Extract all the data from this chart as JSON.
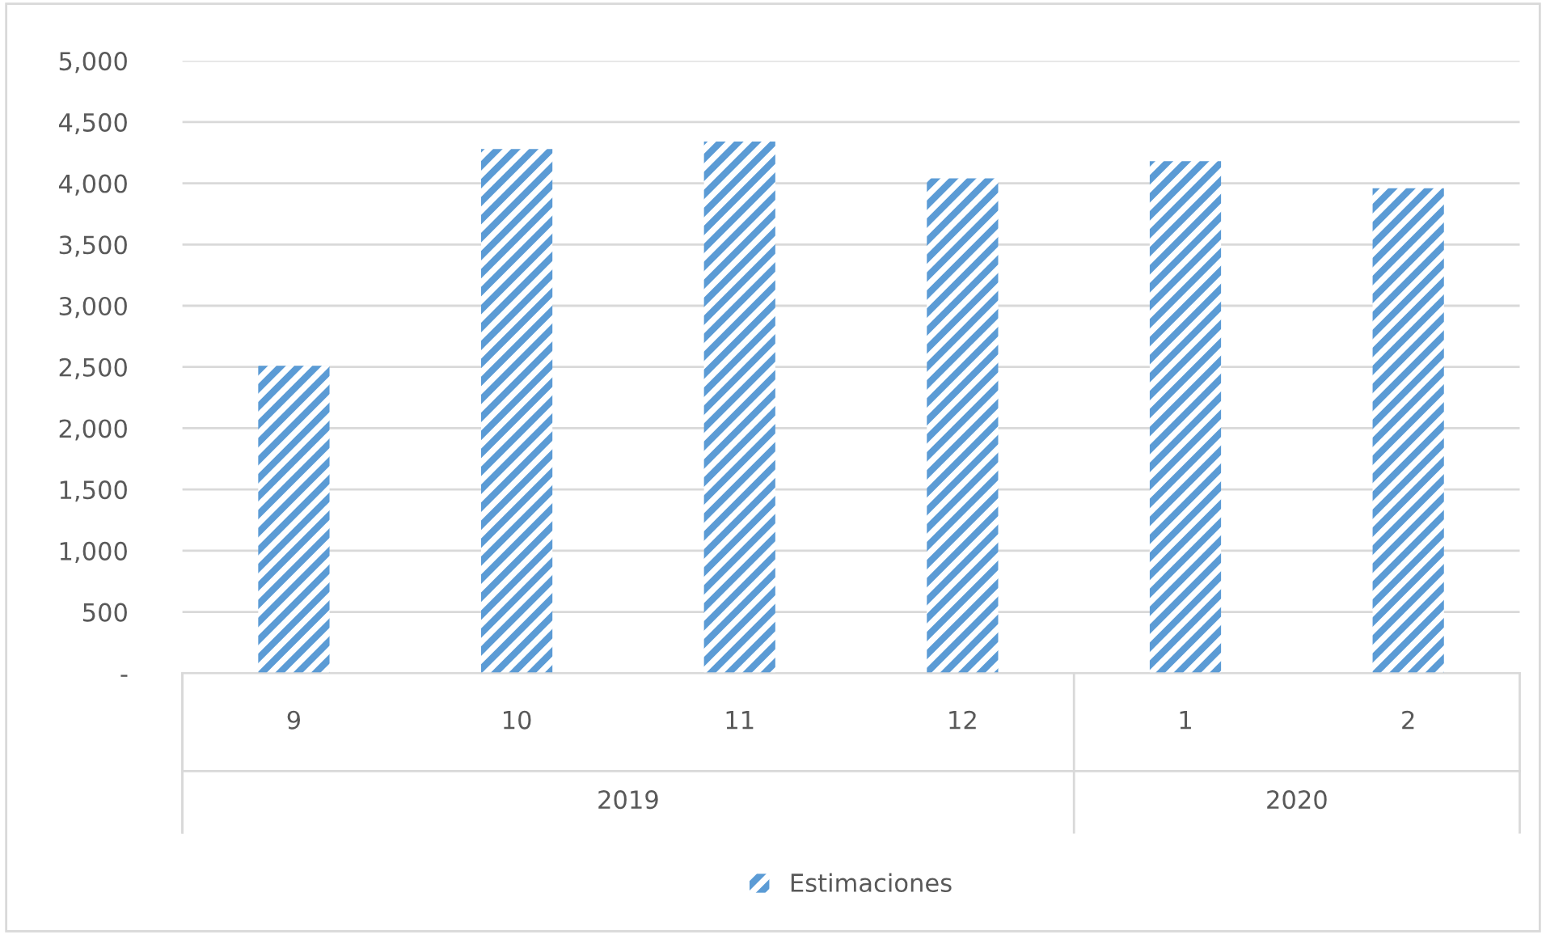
{
  "chart_data": {
    "type": "bar",
    "categories": [
      "9",
      "10",
      "11",
      "12",
      "1",
      "2"
    ],
    "series": [
      {
        "name": "Estimaciones",
        "color": "#5b9bd5",
        "values": [
          2510,
          4280,
          4340,
          4040,
          4180,
          3960
        ]
      }
    ],
    "ylim": [
      0,
      5000
    ],
    "yticks": [
      {
        "value": 0,
        "label": "-"
      },
      {
        "value": 500,
        "label": "500"
      },
      {
        "value": 1000,
        "label": "1,000"
      },
      {
        "value": 1500,
        "label": "1,500"
      },
      {
        "value": 2000,
        "label": "2,000"
      },
      {
        "value": 2500,
        "label": "2,500"
      },
      {
        "value": 3000,
        "label": "3,000"
      },
      {
        "value": 3500,
        "label": "3,500"
      },
      {
        "value": 4000,
        "label": "4,000"
      },
      {
        "value": 4500,
        "label": "4,500"
      },
      {
        "value": 5000,
        "label": "5,000"
      }
    ],
    "annotations": [
      "2019",
      "2020"
    ],
    "grid": "y",
    "legend": "bottom"
  }
}
